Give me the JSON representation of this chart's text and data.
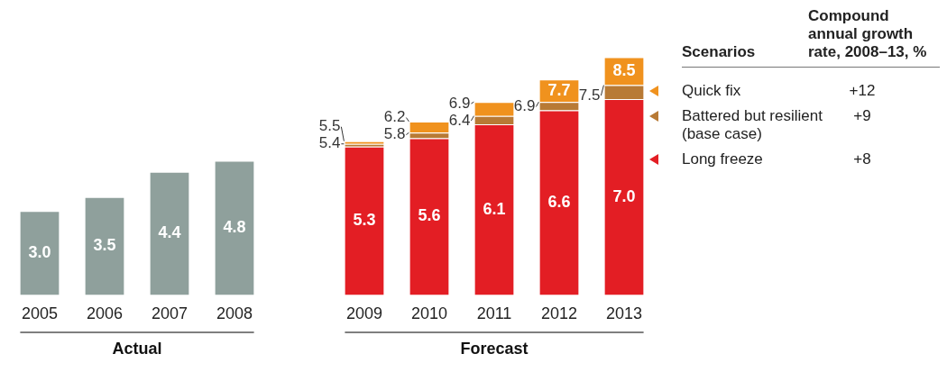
{
  "chart_data": {
    "type": "bar",
    "stacked": true,
    "grid": false,
    "legend": "right",
    "legend_title": "Scenarios",
    "categories": [
      "2005",
      "2006",
      "2007",
      "2008",
      null,
      "2009",
      "2010",
      "2011",
      "2012",
      "2013"
    ],
    "series": [
      {
        "color": "#8fa09c",
        "values": [
          3.0,
          3.5,
          4.4,
          4.8,
          null,
          null,
          null,
          null,
          null,
          null
        ],
        "value_labels": [
          "3.0",
          "3.5",
          "4.4",
          "4.8",
          null,
          null,
          null,
          null,
          null,
          null
        ]
      },
      {
        "name": "Long freeze",
        "color": "#e31e24",
        "values": [
          null,
          null,
          null,
          null,
          null,
          5.3,
          5.6,
          6.1,
          6.6,
          7.0
        ],
        "value_labels": [
          null,
          null,
          null,
          null,
          null,
          "5.3",
          "5.6",
          "6.1",
          "6.6",
          "7.0"
        ]
      },
      {
        "name": "Battered but resilient (base case)",
        "color": "#b87a35",
        "values": [
          null,
          null,
          null,
          null,
          null,
          0.1,
          0.2,
          0.3,
          0.3,
          0.5
        ]
      },
      {
        "name": "Quick fix",
        "color": "#f0921e",
        "values": [
          null,
          null,
          null,
          null,
          null,
          0.1,
          0.4,
          0.5,
          0.8,
          1.0
        ]
      }
    ],
    "annotations": [
      "Actual",
      "Forecast",
      "Compound annual growth rate, 2008–13, %",
      "+12",
      "+9",
      "+8",
      {
        "text": "5.4",
        "x": "2009",
        "y": 5.4
      },
      {
        "text": "5.5",
        "x": "2009",
        "y": 5.5
      },
      {
        "text": "5.8",
        "x": "2010",
        "y": 5.8
      },
      {
        "text": "6.2",
        "x": "2010",
        "y": 6.2
      },
      {
        "text": "6.4",
        "x": "2011",
        "y": 6.4
      },
      {
        "text": "6.9",
        "x": "2012",
        "y": 6.9
      },
      {
        "text": "6.9",
        "x": "2011",
        "y": 6.9
      },
      {
        "text": "7.7",
        "x": "2012",
        "y": 7.7
      },
      {
        "text": "7.5",
        "x": "2013",
        "y": 7.5
      },
      {
        "text": "8.5",
        "x": "2013",
        "y": 8.5
      }
    ]
  }
}
